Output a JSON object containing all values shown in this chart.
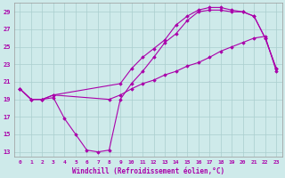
{
  "xlabel": "Windchill (Refroidissement éolien,°C)",
  "bg_color": "#ceeaea",
  "grid_color": "#aacece",
  "line_color": "#aa00aa",
  "xlim": [
    -0.5,
    23.5
  ],
  "ylim": [
    12.5,
    30.0
  ],
  "yticks": [
    13,
    15,
    17,
    19,
    21,
    23,
    25,
    27,
    29
  ],
  "xticks": [
    0,
    1,
    2,
    3,
    4,
    5,
    6,
    7,
    8,
    9,
    10,
    11,
    12,
    13,
    14,
    15,
    16,
    17,
    18,
    19,
    20,
    21,
    22,
    23
  ],
  "line1_x": [
    0,
    1,
    2,
    3,
    4,
    5,
    6,
    7,
    8,
    9,
    10,
    11,
    12,
    13,
    14,
    15,
    16,
    17,
    18,
    19,
    20,
    21,
    22,
    23
  ],
  "line1_y": [
    20.2,
    19.0,
    19.0,
    19.2,
    16.8,
    15.0,
    13.2,
    13.0,
    13.2,
    19.0,
    20.8,
    22.2,
    23.8,
    25.5,
    26.5,
    28.0,
    29.0,
    29.2,
    29.2,
    29.0,
    29.0,
    28.5,
    26.0,
    22.5
  ],
  "line2_x": [
    0,
    1,
    2,
    3,
    9,
    10,
    11,
    12,
    13,
    14,
    15,
    16,
    17,
    18,
    19,
    20,
    21,
    22,
    23
  ],
  "line2_y": [
    20.2,
    19.0,
    19.0,
    19.5,
    20.8,
    22.5,
    23.8,
    24.8,
    25.8,
    27.5,
    28.5,
    29.2,
    29.5,
    29.5,
    29.2,
    29.0,
    28.5,
    26.0,
    22.5
  ],
  "line3_x": [
    0,
    1,
    2,
    3,
    8,
    9,
    10,
    11,
    12,
    13,
    14,
    15,
    16,
    17,
    18,
    19,
    20,
    21,
    22,
    23
  ],
  "line3_y": [
    20.2,
    19.0,
    19.0,
    19.5,
    19.0,
    19.5,
    20.2,
    20.8,
    21.2,
    21.8,
    22.2,
    22.8,
    23.2,
    23.8,
    24.5,
    25.0,
    25.5,
    26.0,
    26.2,
    22.2
  ]
}
